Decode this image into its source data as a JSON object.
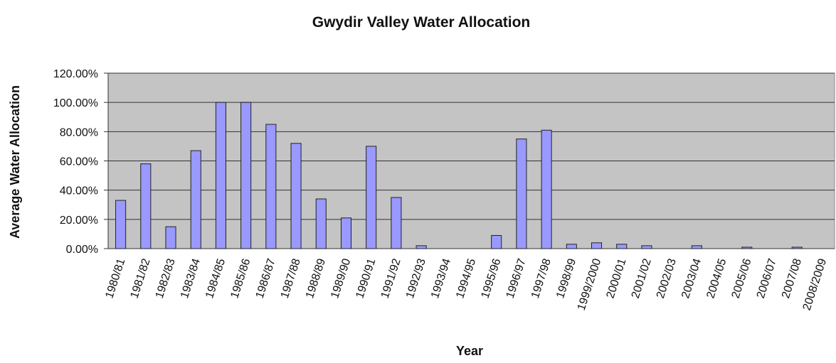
{
  "chart_data": {
    "type": "bar",
    "title": "Gwydir Valley Water Allocation",
    "x_label": "Year",
    "y_label": "Average Water Allocation",
    "categories": [
      "1980/81",
      "1981/82",
      "1982/83",
      "1983/84",
      "1984/85",
      "1985/86",
      "1986/87",
      "1987/88",
      "1988/89",
      "1989/90",
      "1990/91",
      "1991/92",
      "1992/93",
      "1993/94",
      "1994/95",
      "1995/96",
      "1996/97",
      "1997/98",
      "1998/99",
      "1999/2000",
      "2000/01",
      "2001/02",
      "2002/03",
      "2003/04",
      "2004/05",
      "2005/06",
      "2006/07",
      "2007/08",
      "2008/2009"
    ],
    "values": [
      33,
      58,
      15,
      67,
      100,
      100,
      85,
      72,
      34,
      21,
      70,
      35,
      2,
      0,
      0,
      9,
      75,
      81,
      3,
      4,
      3,
      2,
      0,
      2,
      0,
      1,
      0,
      1,
      0
    ],
    "color": "#9999ff",
    "ylim": [
      0,
      120
    ],
    "yticks": [
      {
        "value": 0,
        "label": "0.00%"
      },
      {
        "value": 20,
        "label": "20.00%"
      },
      {
        "value": 40,
        "label": "40.00%"
      },
      {
        "value": 60,
        "label": "60.00%"
      },
      {
        "value": 80,
        "label": "80.00%"
      },
      {
        "value": 100,
        "label": "100.00%"
      },
      {
        "value": 120,
        "label": "120.00%"
      }
    ],
    "grid": true
  }
}
